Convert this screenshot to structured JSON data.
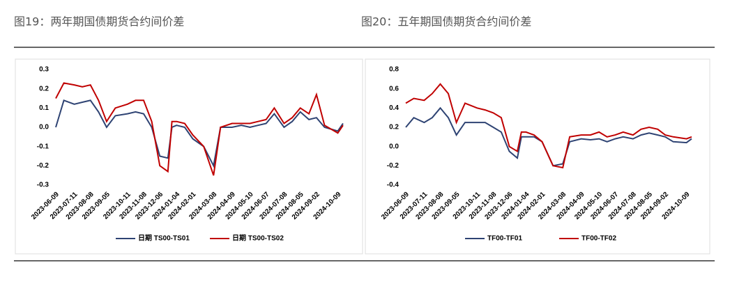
{
  "chart_data": [
    {
      "type": "line",
      "title": "图19：两年期国债期货合约间价差",
      "x": [
        "2023-06-09",
        "2023-06-23",
        "2023-07-11",
        "2023-07-25",
        "2023-08-08",
        "2023-08-22",
        "2023-09-05",
        "2023-09-20",
        "2023-10-11",
        "2023-10-25",
        "2023-11-08",
        "2023-11-22",
        "2023-12-06",
        "2023-12-20",
        "2023-12-27",
        "2024-01-04",
        "2024-01-18",
        "2024-02-01",
        "2024-02-20",
        "2024-03-08",
        "2024-03-20",
        "2024-04-09",
        "2024-04-25",
        "2024-05-10",
        "2024-05-24",
        "2024-06-07",
        "2024-06-21",
        "2024-07-08",
        "2024-07-22",
        "2024-08-05",
        "2024-08-20",
        "2024-09-02",
        "2024-09-16",
        "2024-10-09",
        "2024-10-18"
      ],
      "series": [
        {
          "name": "日期 TS00-TS01",
          "color": "#2e4373",
          "values": [
            0.0,
            0.14,
            0.12,
            0.13,
            0.14,
            0.08,
            0.0,
            0.06,
            0.07,
            0.08,
            0.07,
            0.0,
            -0.15,
            -0.16,
            0.0,
            0.01,
            0.0,
            -0.06,
            -0.1,
            -0.2,
            0.0,
            0.0,
            0.01,
            0.0,
            0.01,
            0.02,
            0.07,
            0.0,
            0.03,
            0.08,
            0.04,
            0.05,
            0.0,
            -0.02,
            0.02
          ]
        },
        {
          "name": "日期 TS00-TS02",
          "color": "#c00000",
          "values": [
            0.15,
            0.23,
            0.22,
            0.21,
            0.22,
            0.14,
            0.03,
            0.1,
            0.12,
            0.14,
            0.14,
            0.03,
            -0.2,
            -0.23,
            0.03,
            0.03,
            0.02,
            -0.04,
            -0.1,
            -0.25,
            0.0,
            0.02,
            0.02,
            0.02,
            0.03,
            0.04,
            0.1,
            0.02,
            0.05,
            0.1,
            0.07,
            0.17,
            0.01,
            -0.03,
            0.01
          ]
        }
      ],
      "xticks": [
        "2023-06-09",
        "2023-07-11",
        "2023-08-08",
        "2023-09-05",
        "2023-10-11",
        "2023-11-08",
        "2023-12-06",
        "2024-01-04",
        "2024-02-01",
        "2024-03-08",
        "2024-04-09",
        "2024-05-10",
        "2024-06-07",
        "2024-07-08",
        "2024-08-05",
        "2024-09-02",
        "2024-10-09"
      ],
      "ylim": [
        -0.3,
        0.3
      ],
      "yticks": [
        0.3,
        0.2,
        0.1,
        {
          "value": 0,
          "label": "0.0"
        },
        -0.1,
        -0.2,
        -0.3
      ],
      "legend": "bottom"
    },
    {
      "type": "line",
      "title": "图20：五年期国债期货合约间价差",
      "x": [
        "2023-06-09",
        "2023-06-23",
        "2023-07-11",
        "2023-07-25",
        "2023-08-08",
        "2023-08-22",
        "2023-09-05",
        "2023-09-20",
        "2023-10-11",
        "2023-10-25",
        "2023-11-08",
        "2023-11-22",
        "2023-12-06",
        "2023-12-20",
        "2023-12-27",
        "2024-01-04",
        "2024-01-18",
        "2024-02-01",
        "2024-02-20",
        "2024-03-08",
        "2024-03-20",
        "2024-04-09",
        "2024-04-25",
        "2024-05-10",
        "2024-05-24",
        "2024-06-07",
        "2024-06-21",
        "2024-07-08",
        "2024-07-22",
        "2024-08-05",
        "2024-08-20",
        "2024-09-02",
        "2024-09-16",
        "2024-10-09",
        "2024-10-18"
      ],
      "series": [
        {
          "name": "TF00-TF01",
          "color": "#2e4373",
          "values": [
            0.2,
            0.3,
            0.25,
            0.3,
            0.4,
            0.3,
            0.12,
            0.25,
            0.25,
            0.25,
            0.2,
            0.15,
            -0.05,
            -0.12,
            0.1,
            0.1,
            0.1,
            0.05,
            -0.2,
            -0.18,
            0.05,
            0.08,
            0.07,
            0.08,
            0.05,
            0.08,
            0.1,
            0.08,
            0.12,
            0.14,
            0.12,
            0.1,
            0.05,
            0.04,
            0.08
          ]
        },
        {
          "name": "TF00-TF02",
          "color": "#c00000",
          "values": [
            0.45,
            0.5,
            0.48,
            0.55,
            0.65,
            0.55,
            0.25,
            0.45,
            0.4,
            0.38,
            0.35,
            0.3,
            0.0,
            -0.05,
            0.15,
            0.15,
            0.12,
            0.05,
            -0.2,
            -0.22,
            0.1,
            0.12,
            0.12,
            0.15,
            0.1,
            0.12,
            0.15,
            0.12,
            0.18,
            0.2,
            0.18,
            0.12,
            0.1,
            0.08,
            0.1
          ]
        }
      ],
      "xticks": [
        "2023-06-09",
        "2023-07-11",
        "2023-08-08",
        "2023-09-05",
        "2023-10-11",
        "2023-11-08",
        "2023-12-06",
        "2024-01-04",
        "2024-02-01",
        "2024-03-08",
        "2024-04-09",
        "2024-05-10",
        "2024-06-07",
        "2024-07-08",
        "2024-08-05",
        "2024-09-02",
        "2024-10-09"
      ],
      "ylim": [
        -0.4,
        0.8
      ],
      "yticks": [
        0.8,
        0.6,
        0.4,
        0.2,
        {
          "value": 0,
          "label": "0.0"
        },
        -0.2,
        -0.4
      ],
      "legend": "bottom"
    }
  ]
}
